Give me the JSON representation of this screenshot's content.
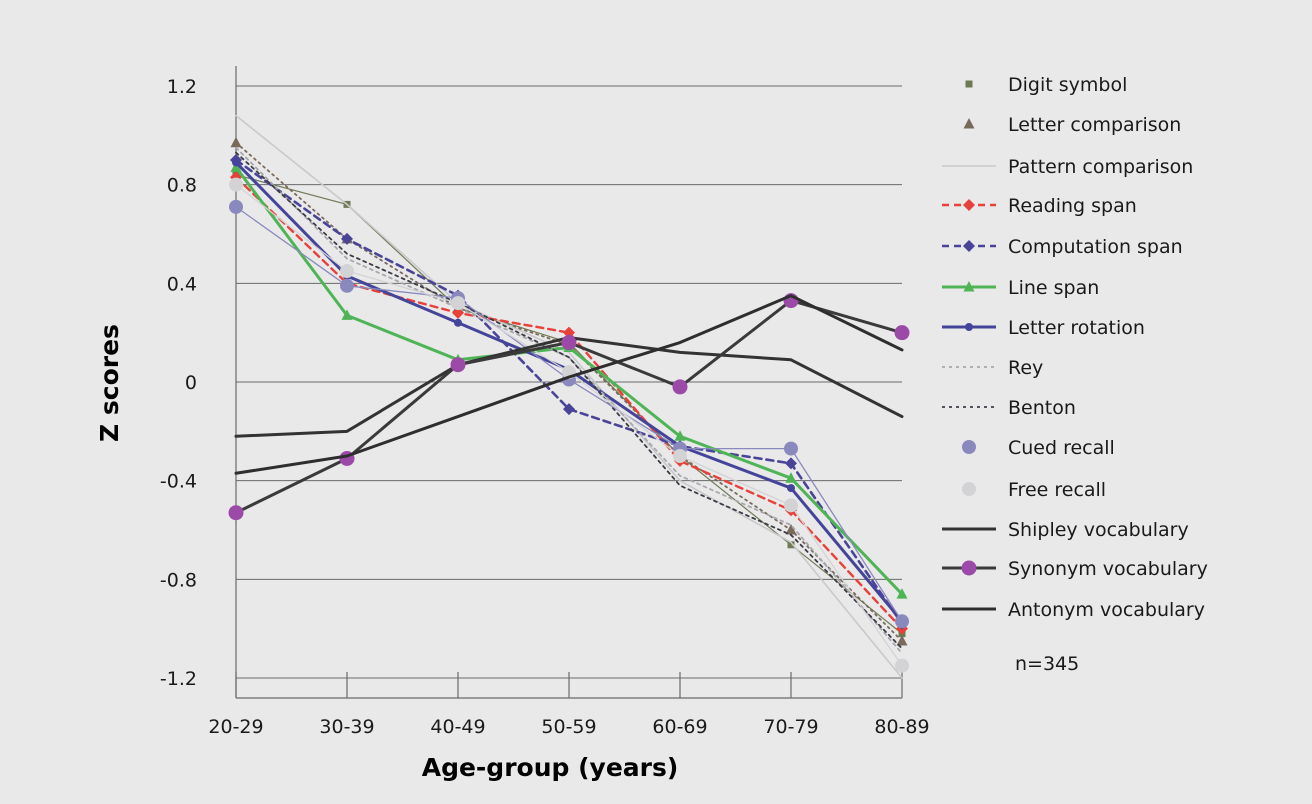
{
  "chart_data": {
    "type": "line",
    "xlabel": "Age-group (years)",
    "ylabel": "Z scores",
    "categories": [
      "20-29",
      "30-39",
      "40-49",
      "50-59",
      "60-69",
      "70-79",
      "80-89"
    ],
    "ylim": [
      -1.2,
      1.2
    ],
    "yticks": [
      "1.2",
      "0.8",
      "0.4",
      "0",
      "-0.4",
      "-0.8",
      "-1.2"
    ],
    "grid": true,
    "legend_position": "right",
    "note": "n=345",
    "series": [
      {
        "name": "Digit symbol",
        "color": "#6f7a55",
        "dash": "none",
        "marker": "square",
        "width": 1.2,
        "values": [
          0.84,
          0.72,
          0.3,
          0.16,
          -0.3,
          -0.66,
          -1.02
        ]
      },
      {
        "name": "Letter comparison",
        "color": "#7a6a5c",
        "dash": "2,4",
        "marker": "triangle",
        "width": 1.8,
        "values": [
          0.97,
          0.58,
          0.3,
          0.15,
          -0.3,
          -0.6,
          -1.05
        ]
      },
      {
        "name": "Pattern comparison",
        "color": "#c9c9cb",
        "dash": "none",
        "marker": "none",
        "width": 1.6,
        "values": [
          1.08,
          0.72,
          0.32,
          0.12,
          -0.4,
          -0.65,
          -1.2
        ]
      },
      {
        "name": "Reading span",
        "color": "#e8413a",
        "dash": "7,5",
        "marker": "diamond",
        "width": 2.4,
        "values": [
          0.83,
          0.4,
          0.28,
          0.2,
          -0.32,
          -0.52,
          -1.0
        ]
      },
      {
        "name": "Computation span",
        "color": "#4a4499",
        "dash": "7,5",
        "marker": "diamond",
        "width": 2.6,
        "values": [
          0.9,
          0.58,
          0.35,
          -0.11,
          -0.26,
          -0.33,
          -0.98
        ]
      },
      {
        "name": "Line span",
        "color": "#4fb455",
        "dash": "none",
        "marker": "triangle",
        "width": 3,
        "values": [
          0.87,
          0.27,
          0.09,
          0.14,
          -0.22,
          -0.39,
          -0.86
        ]
      },
      {
        "name": "Letter rotation",
        "color": "#44449a",
        "dash": "none",
        "marker": "dot",
        "width": 3,
        "values": [
          0.89,
          0.43,
          0.24,
          0.05,
          -0.26,
          -0.43,
          -0.97
        ]
      },
      {
        "name": "Rey",
        "color": "#a7a7ad",
        "dash": "3,4",
        "marker": "none",
        "width": 1.8,
        "values": [
          0.95,
          0.5,
          0.3,
          0.1,
          -0.38,
          -0.58,
          -1.1
        ]
      },
      {
        "name": "Benton",
        "color": "#3c3c46",
        "dash": "3,4",
        "marker": "none",
        "width": 1.8,
        "values": [
          0.93,
          0.52,
          0.32,
          0.1,
          -0.42,
          -0.62,
          -1.08
        ]
      },
      {
        "name": "Cued recall",
        "color": "#8a89bd",
        "dash": "none",
        "marker": "bigdot",
        "width": 1.3,
        "values": [
          0.71,
          0.39,
          0.34,
          0.01,
          -0.27,
          -0.27,
          -0.97
        ]
      },
      {
        "name": "Free recall",
        "color": "#d3d3d5",
        "dash": "none",
        "marker": "bigdot",
        "width": 1.3,
        "values": [
          0.8,
          0.45,
          0.32,
          0.04,
          -0.3,
          -0.5,
          -1.15
        ]
      },
      {
        "name": "Shipley vocabulary",
        "color": "#333333",
        "dash": "none",
        "marker": "none",
        "width": 3,
        "values": [
          -0.22,
          -0.2,
          0.07,
          0.18,
          0.12,
          0.09,
          -0.14
        ]
      },
      {
        "name": "Synonym vocabulary",
        "color": "#3a3a3a",
        "dash": "none",
        "marker": "purpledot",
        "markerColor": "#9b4aa8",
        "width": 3,
        "values": [
          -0.53,
          -0.31,
          0.07,
          0.16,
          -0.02,
          0.33,
          0.2
        ]
      },
      {
        "name": "Antonym vocabulary",
        "color": "#2e2e2e",
        "dash": "none",
        "marker": "none",
        "width": 3,
        "values": [
          -0.37,
          -0.3,
          -0.14,
          0.02,
          0.16,
          0.35,
          0.13
        ]
      }
    ]
  }
}
